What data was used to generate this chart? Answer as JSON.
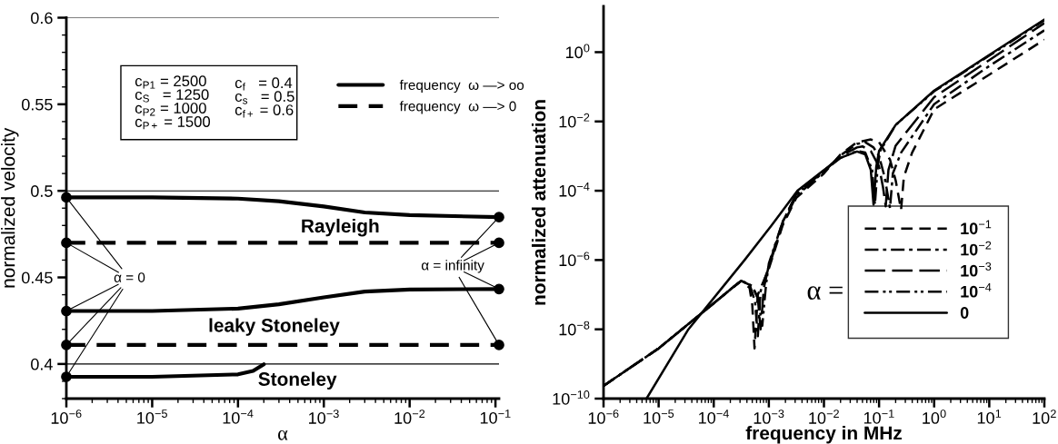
{
  "chart_data": [
    {
      "type": "line",
      "xlabel": "α",
      "ylabel": "normalized velocity",
      "log": "x",
      "grid": false,
      "legend": "top right",
      "xlim": [
        1e-06,
        0.11
      ],
      "ylim": [
        0.38,
        0.6
      ],
      "xticks": [
        {
          "value": 1e-06,
          "label": "10$^{−6}$"
        },
        {
          "value": 1e-05,
          "label": "10$^{−5}$"
        },
        {
          "value": 0.0001,
          "label": "10$^{−4}$"
        },
        {
          "value": 0.001,
          "label": "10$^{−3}$"
        },
        {
          "value": 0.01,
          "label": "10$^{−2}$"
        },
        {
          "value": 0.1,
          "label": "10$^{−1}$"
        }
      ],
      "yticks": [
        0.4,
        0.45,
        0.5,
        0.55,
        0.6
      ],
      "ref_lines": [
        {
          "axis": "y",
          "value": 0.4,
          "color": "#000000"
        },
        {
          "axis": "y",
          "value": 0.5,
          "color": "#000000"
        },
        {
          "axis": "y",
          "value": 0.6,
          "color": "#000000"
        }
      ],
      "series": [
        {
          "name": "frequency  ω —> oo",
          "color": "#000000",
          "line_style": "solid",
          "x": [
            1e-06,
            1e-05,
            0.0001,
            0.0003,
            0.001,
            0.003,
            0.01,
            0.11
          ],
          "values": [
            0.4962,
            0.4962,
            0.4955,
            0.494,
            0.491,
            0.4875,
            0.486,
            0.4848
          ]
        },
        {
          "name": "frequency  ω —> 0",
          "color": "#000000",
          "line_style": "dashed",
          "x": [
            1e-06,
            0.11
          ],
          "values": [
            0.47,
            0.47
          ]
        },
        {
          "color": "#000000",
          "line_style": "solid",
          "x": [
            1e-06,
            1e-05,
            0.0001,
            0.0003,
            0.001,
            0.003,
            0.01,
            0.11
          ],
          "values": [
            0.4306,
            0.4306,
            0.432,
            0.4345,
            0.4385,
            0.4418,
            0.443,
            0.4433
          ]
        },
        {
          "color": "#000000",
          "line_style": "dashed",
          "x": [
            1e-06,
            0.11
          ],
          "values": [
            0.411,
            0.411
          ]
        },
        {
          "color": "#000000",
          "line_style": "solid",
          "x": [
            1e-06,
            1e-05,
            0.0001,
            0.00015,
            0.0002
          ],
          "values": [
            0.3926,
            0.3926,
            0.394,
            0.396,
            0.3998
          ]
        },
        {
          "type": "scatter",
          "marker": "circle",
          "color": "#000000",
          "x": [
            1e-06,
            1e-06,
            1e-06,
            1e-06,
            1e-06,
            0.11,
            0.11,
            0.11,
            0.11
          ],
          "values": [
            0.4962,
            0.47,
            0.4306,
            0.411,
            0.3926,
            0.4848,
            0.47,
            0.4433,
            0.411
          ]
        }
      ],
      "annotations": [
        "c$_{P1}$ = 2500\nc$_{S}$   = 1250\nc$_{P2}$ = 1000\nc$_{P+}$ = 1500",
        "c$_{f}$   = 0.4\nc$_{s}$   = 0.5\nc$_{f+}$ = 0.6",
        "Rayleigh",
        "leaky Stoneley",
        "Stoneley",
        {
          "text": "α = 0",
          "x": 1e-06,
          "y": 0.4306
        },
        {
          "text": "α = infinity",
          "x": 0.11,
          "y": 0.4433
        }
      ]
    },
    {
      "type": "line",
      "xlabel": "frequency in MHz",
      "ylabel": "normalized attenuation",
      "log": "xy",
      "grid": false,
      "legend": "bottom right",
      "legend_title": "α =",
      "xlim": [
        1e-06,
        100
      ],
      "ylim": [
        1e-10,
        21
      ],
      "xticks": [
        {
          "value": 1e-06,
          "label": "10$^{−6}$"
        },
        {
          "value": 1e-05,
          "label": "10$^{−5}$"
        },
        {
          "value": 0.0001,
          "label": "10$^{−4}$"
        },
        {
          "value": 0.001,
          "label": "10$^{−3}$"
        },
        {
          "value": 0.01,
          "label": "10$^{−2}$"
        },
        {
          "value": 0.1,
          "label": "10$^{−1}$"
        },
        {
          "value": 1,
          "label": "10$^{0}$"
        },
        {
          "value": 10,
          "label": "10$^{1}$"
        },
        {
          "value": 100,
          "label": "10$^{2}$"
        }
      ],
      "yticks": [
        {
          "value": 1e-10,
          "label": "10$^{−10}$"
        },
        {
          "value": 1e-08,
          "label": "10$^{−8}$"
        },
        {
          "value": 1e-06,
          "label": "10$^{−6}$"
        },
        {
          "value": 0.0001,
          "label": "10$^{−4}$"
        },
        {
          "value": 0.01,
          "label": "10$^{−2}$"
        },
        {
          "value": 1,
          "label": "10$^{0}$"
        }
      ],
      "series": [
        {
          "name": "10$^{−1}$",
          "color": "#000000",
          "line_style": "dashed",
          "x": [
            1e-06,
            1e-05,
            0.0001,
            0.0002,
            0.000316,
            0.000447,
            0.000501,
            0.00055,
            0.000631,
            0.001,
            0.00178,
            0.00316,
            0.01,
            0.02,
            0.0398,
            0.0708,
            0.1,
            0.158,
            0.2,
            0.251,
            0.282,
            0.398,
            1,
            10,
            100
          ],
          "values": [
            2.34e-10,
            2.82e-09,
            5.62e-08,
            1.41e-07,
            2.51e-07,
            1.58e-07,
            5.01e-08,
            2.82e-09,
            1e-07,
            5.62e-07,
            1e-05,
            6.31e-05,
            0.000316,
            0.00112,
            0.00251,
            0.00302,
            0.00251,
            0.000794,
            0.0002,
            2.82e-05,
            0.000251,
            0.00126,
            0.0224,
            0.224,
            2.29
          ]
        },
        {
          "name": "10$^{−2}$",
          "color": "#000000",
          "line_style": "dashdot",
          "x": [
            1e-06,
            1e-05,
            0.0001,
            0.0002,
            0.000316,
            0.000447,
            0.000562,
            0.000631,
            0.000708,
            0.001,
            0.00178,
            0.00316,
            0.01,
            0.02,
            0.0398,
            0.0562,
            0.0794,
            0.1,
            0.126,
            0.158,
            0.178,
            0.251,
            1,
            10,
            100
          ],
          "values": [
            2.34e-10,
            2.82e-09,
            5.62e-08,
            1.41e-07,
            2.51e-07,
            2e-07,
            6.31e-08,
            6.31e-09,
            1.26e-07,
            6.31e-07,
            1.12e-05,
            7.08e-05,
            0.000355,
            0.00105,
            0.00224,
            0.00251,
            0.00178,
            0.001,
            0.000251,
            3.16e-05,
            0.000316,
            0.00126,
            0.0316,
            0.398,
            4.27
          ]
        },
        {
          "name": "10$^{−3}$",
          "color": "#000000",
          "line_style": "longdash",
          "x": [
            1e-06,
            1e-05,
            0.0001,
            0.0002,
            0.000316,
            0.000501,
            0.000631,
            0.000708,
            0.000813,
            0.001,
            0.00178,
            0.00316,
            0.01,
            0.02,
            0.0398,
            0.0501,
            0.0708,
            0.1,
            0.118,
            0.132,
            0.148,
            0.2,
            1,
            10,
            100
          ],
          "values": [
            2.34e-10,
            2.82e-09,
            5.62e-08,
            1.41e-07,
            2.51e-07,
            1.78e-07,
            7.94e-08,
            1e-08,
            1.58e-07,
            7.08e-07,
            1.26e-05,
            7.94e-05,
            0.00038,
            0.001,
            0.00178,
            0.00191,
            0.00141,
            0.000501,
            0.000126,
            3.55e-05,
            0.000398,
            0.002,
            0.0501,
            0.589,
            6.92
          ]
        },
        {
          "name": "10$^{−4}$",
          "color": "#000000",
          "line_style": "dashdotdot",
          "x": [
            1e-06,
            1e-05,
            0.0001,
            0.0002,
            0.000316,
            0.000501,
            0.000631,
            0.000759,
            0.000891,
            0.001,
            0.00178,
            0.00316,
            0.01,
            0.02,
            0.0398,
            0.0562,
            0.075,
            0.0841,
            0.0944,
            0.105,
            0.2,
            1,
            10,
            100
          ],
          "values": [
            2.34e-10,
            2.82e-09,
            5.62e-08,
            1.41e-07,
            2.51e-07,
            1.78e-07,
            7.94e-08,
            1.26e-08,
            2e-07,
            7.94e-07,
            1.26e-05,
            7.94e-05,
            0.00038,
            0.000891,
            0.00141,
            0.00126,
            0.000398,
            3.98e-05,
            0.000501,
            0.00141,
            0.00794,
            0.0741,
            0.794,
            8.32
          ]
        },
        {
          "name": "0",
          "color": "#000000",
          "line_style": "solid",
          "x": [
            6.03e-06,
            3.47e-05,
            0.000363,
            0.00112,
            0.00331,
            0.01,
            0.02,
            0.0398,
            0.0562,
            0.0708,
            0.0794,
            0.0891,
            0.1,
            0.2,
            1,
            3.16,
            10,
            31.6,
            100
          ],
          "values": [
            1e-10,
            1e-08,
            1e-06,
            1e-05,
            0.0001,
            0.000398,
            0.000891,
            0.00135,
            0.00112,
            0.000398,
            3.98e-05,
            0.000501,
            0.00141,
            0.00794,
            0.0776,
            0.251,
            0.832,
            2.69,
            8.71
          ]
        }
      ]
    }
  ]
}
